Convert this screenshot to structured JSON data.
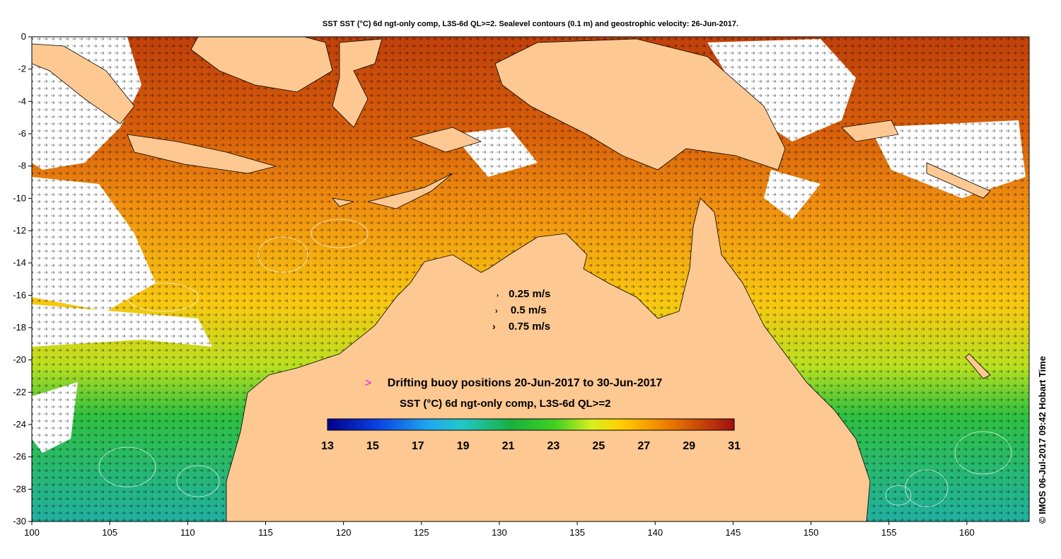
{
  "title": "SST SST (°C) 6d ngt-only comp, L3S-6d QL>=2. Sealevel contours (0.1 m) and geostrophic velocity: 26-Jun-2017.",
  "axes": {
    "x_ticks": [
      "100",
      "105",
      "110",
      "115",
      "120",
      "125",
      "130",
      "135",
      "140",
      "145",
      "150",
      "155",
      "160"
    ],
    "y_ticks": [
      "0",
      "-2",
      "-4",
      "-6",
      "-8",
      "-10",
      "-12",
      "-14",
      "-16",
      "-18",
      "-20",
      "-22",
      "-24",
      "-26",
      "-28",
      "-30"
    ]
  },
  "velocity_legend": [
    {
      "label": "0.25 m/s"
    },
    {
      "label": "0.5 m/s"
    },
    {
      "label": "0.75 m/s"
    }
  ],
  "buoy_legend": {
    "marker": ">",
    "label": "Drifting buoy positions 20-Jun-2017 to 30-Jun-2017"
  },
  "colorbar": {
    "title": "SST (°C) 6d ngt-only comp, L3S-6d QL>=2",
    "ticks": [
      "13",
      "15",
      "17",
      "19",
      "21",
      "23",
      "25",
      "27",
      "29",
      "31"
    ],
    "range": [
      13,
      31
    ]
  },
  "credit": "© IMOS 06-Jul-2017 09:42 Hobart Time",
  "colors": {
    "land": "#fdc891",
    "contour": "#ffffff",
    "buoy_marker": "#ff00ff"
  }
}
